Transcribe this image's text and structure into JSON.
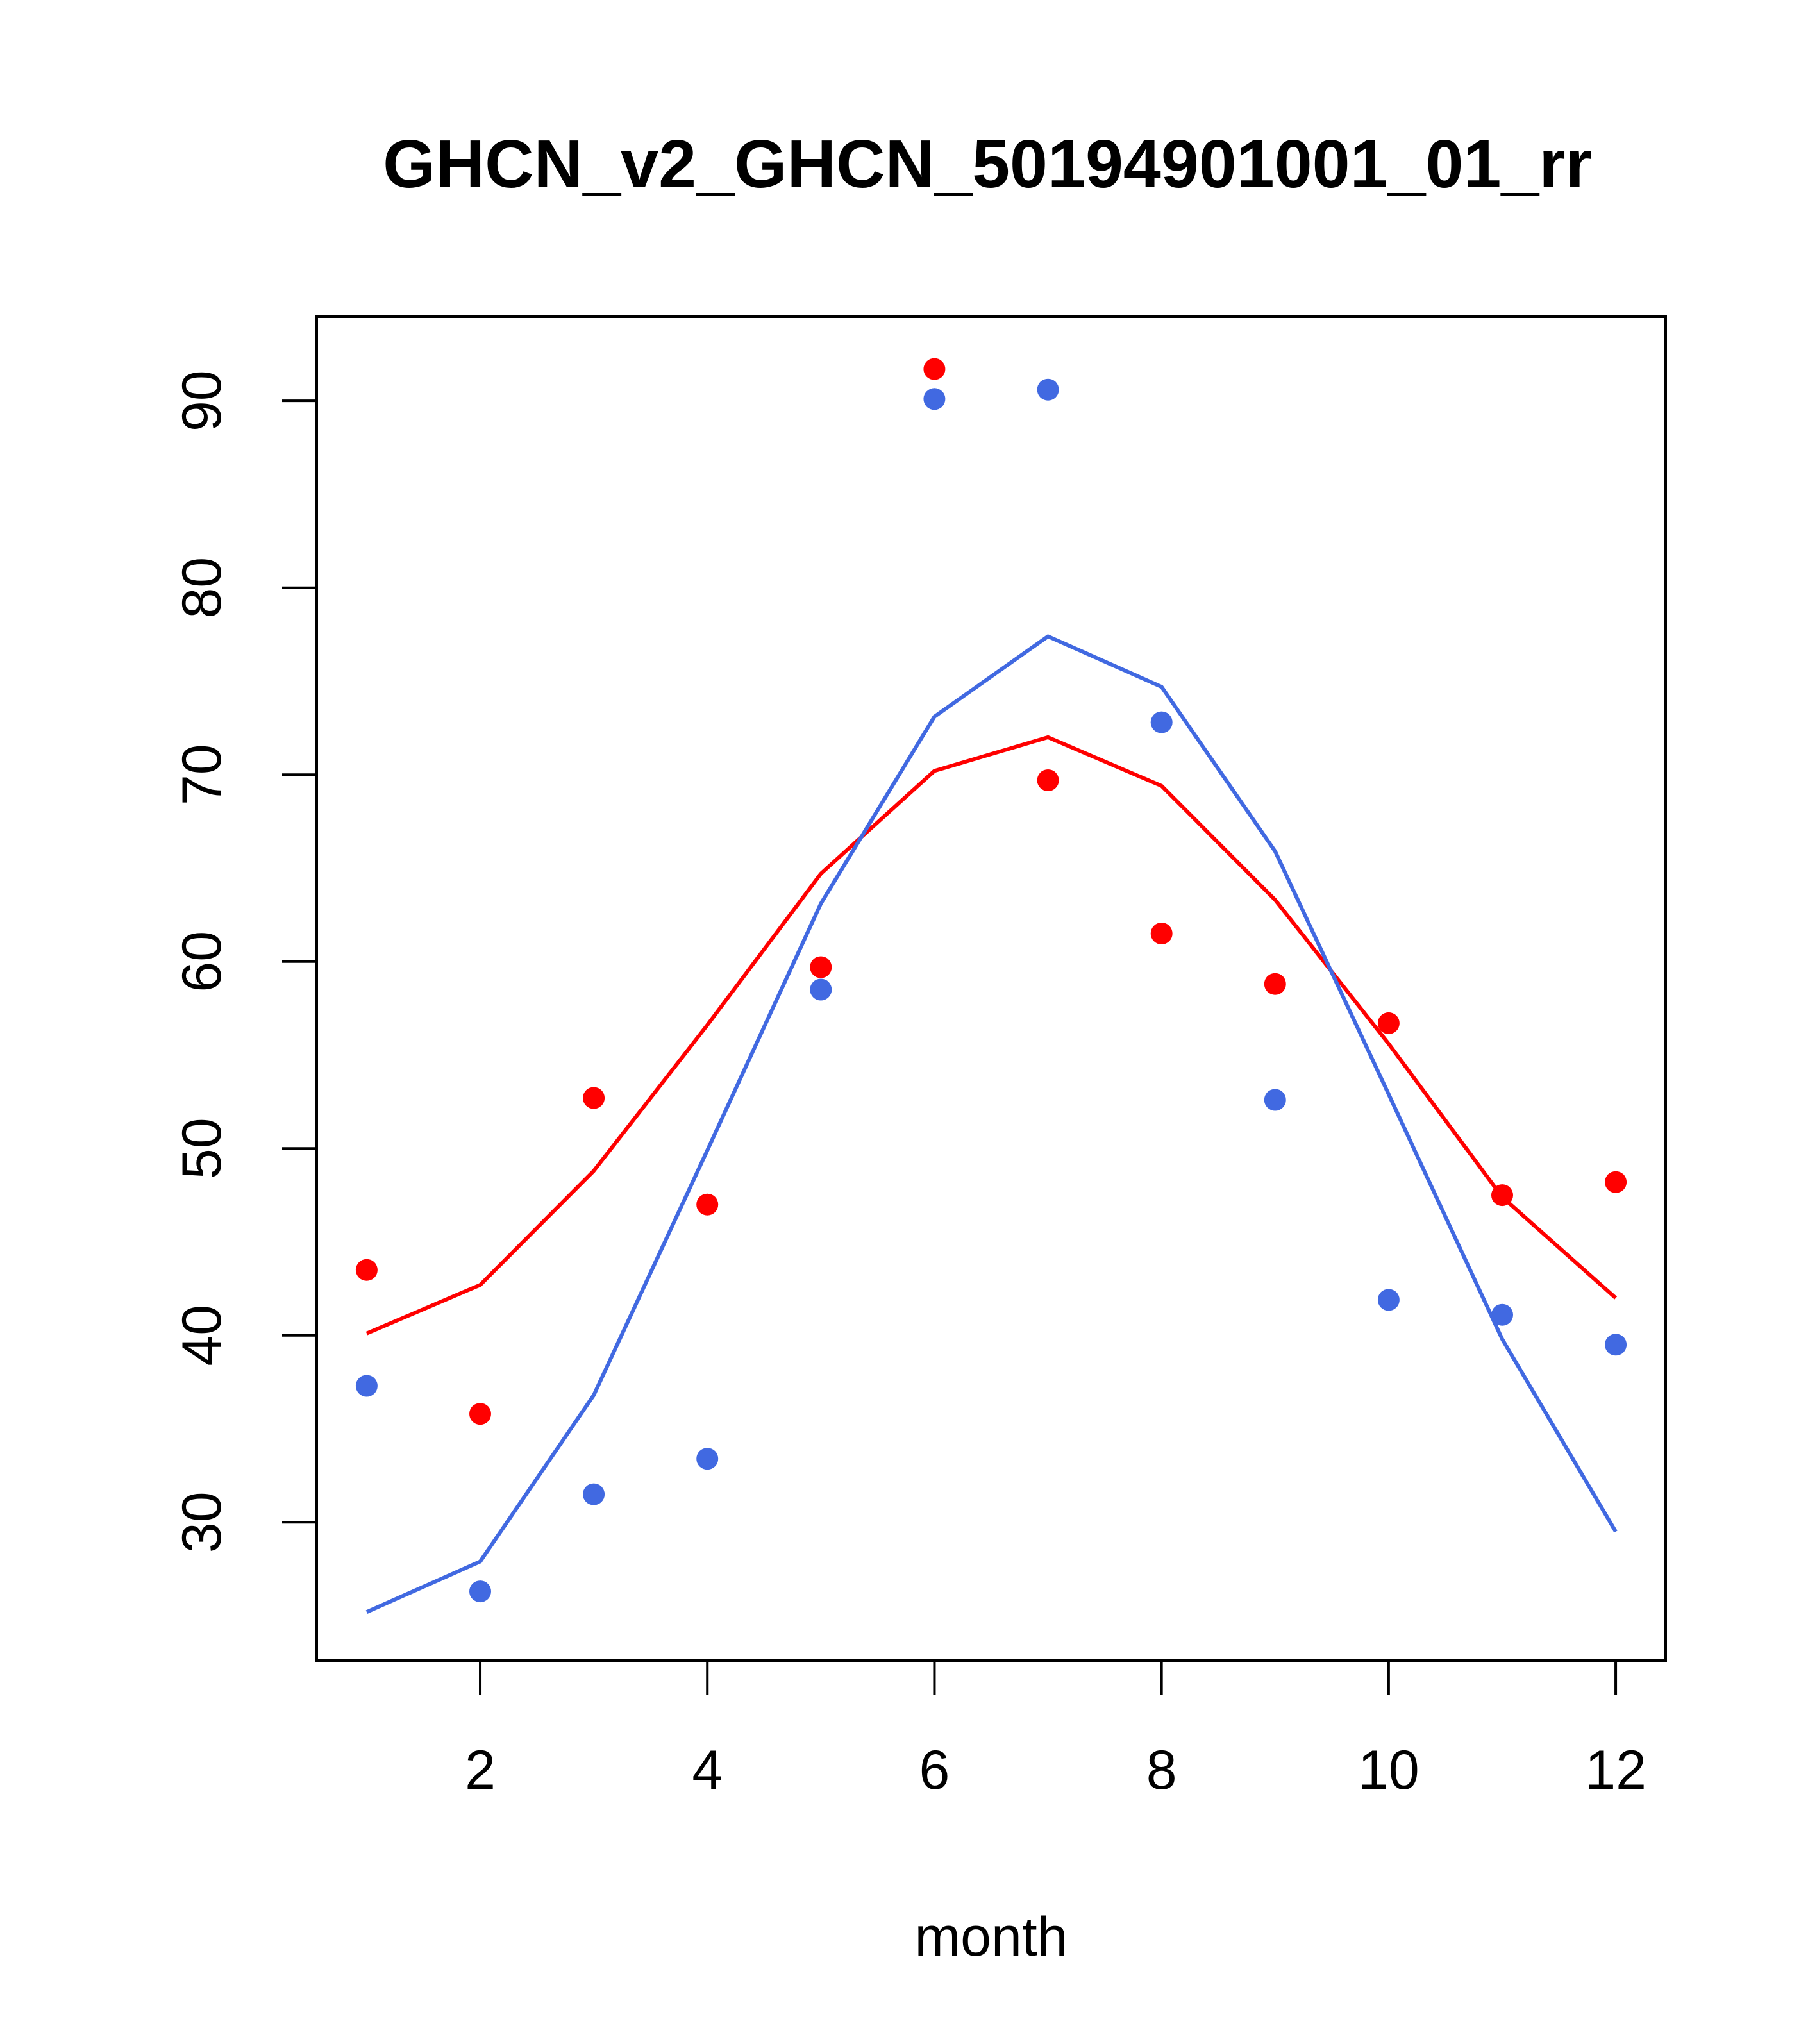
{
  "chart_data": {
    "type": "scatter",
    "title": "GHCN_v2_GHCN_50194901001_01_rr",
    "xlabel": "month",
    "ylabel": "",
    "xlim": [
      0.56,
      12.44
    ],
    "ylim": [
      22.6,
      94.5
    ],
    "x_ticks": [
      2,
      4,
      6,
      8,
      10,
      12
    ],
    "y_ticks": [
      30,
      40,
      50,
      60,
      70,
      80,
      90
    ],
    "grid": false,
    "legend": "none",
    "series": [
      {
        "name": "red-points",
        "kind": "points",
        "color": "#ff0000",
        "x": [
          1,
          2,
          3,
          4,
          5,
          6,
          7,
          8,
          9,
          10,
          11,
          12
        ],
        "values": [
          43.5,
          35.8,
          52.7,
          47.0,
          59.7,
          91.7,
          69.7,
          61.5,
          58.8,
          56.7,
          47.5,
          48.2
        ]
      },
      {
        "name": "blue-points",
        "kind": "points",
        "color": "#4169e1",
        "x": [
          1,
          2,
          3,
          4,
          5,
          6,
          7,
          8,
          9,
          10,
          11,
          12
        ],
        "values": [
          37.3,
          26.3,
          31.5,
          33.4,
          58.5,
          90.1,
          90.6,
          72.8,
          52.6,
          41.9,
          41.1,
          39.5
        ]
      },
      {
        "name": "red-line",
        "kind": "line",
        "color": "#ff0000",
        "x": [
          1,
          2,
          3,
          4,
          5,
          6,
          7,
          8,
          9,
          10,
          11,
          12
        ],
        "values": [
          40.1,
          42.7,
          48.8,
          56.6,
          64.7,
          70.2,
          72.0,
          69.4,
          63.3,
          55.6,
          47.4,
          42.0
        ]
      },
      {
        "name": "blue-line",
        "kind": "line",
        "color": "#4169e1",
        "x": [
          1,
          2,
          3,
          4,
          5,
          6,
          7,
          8,
          9,
          10,
          11,
          12
        ],
        "values": [
          25.2,
          27.9,
          36.8,
          49.9,
          63.1,
          73.1,
          77.4,
          74.7,
          65.9,
          52.9,
          39.8,
          29.5
        ]
      }
    ]
  }
}
